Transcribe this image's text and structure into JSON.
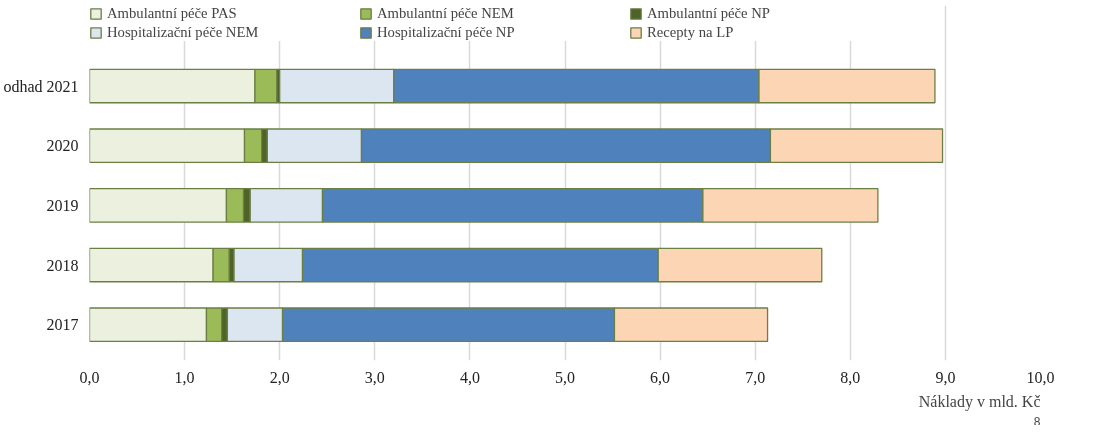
{
  "chart_data": {
    "type": "bar",
    "orientation": "horizontal",
    "stacked": true,
    "categories": [
      "odhad 2021",
      "2020",
      "2019",
      "2018",
      "2017"
    ],
    "series": [
      {
        "name": "Ambulantní péče PAS",
        "color": "#ebf1de",
        "values": [
          1.74,
          1.63,
          1.44,
          1.3,
          1.23
        ]
      },
      {
        "name": "Ambulantní péče NEM",
        "color": "#9bbb59",
        "values": [
          0.23,
          0.18,
          0.18,
          0.17,
          0.16
        ]
      },
      {
        "name": "Ambulantní péče NP",
        "color": "#4f6228",
        "values": [
          0.03,
          0.06,
          0.07,
          0.05,
          0.06
        ]
      },
      {
        "name": "Hospitalizační péče NEM",
        "color": "#dce6f1",
        "values": [
          1.2,
          0.99,
          0.76,
          0.72,
          0.58
        ]
      },
      {
        "name": "Hospitalizační péče NP",
        "color": "#4f81bd",
        "values": [
          3.84,
          4.3,
          4.0,
          3.74,
          3.49
        ]
      },
      {
        "name": "Recepty na LP",
        "color": "#fcd5b4",
        "values": [
          1.85,
          1.81,
          1.84,
          1.72,
          1.61
        ]
      }
    ],
    "xlabel": "Náklady v mld. Kč",
    "xlim": [
      0,
      10
    ],
    "xticks": [
      {
        "value": 0,
        "label": "0,0"
      },
      {
        "value": 1,
        "label": "1,0"
      },
      {
        "value": 2,
        "label": "2,0"
      },
      {
        "value": 3,
        "label": "3,0"
      },
      {
        "value": 4,
        "label": "4,0"
      },
      {
        "value": 5,
        "label": "5,0"
      },
      {
        "value": 6,
        "label": "6,0"
      },
      {
        "value": 7,
        "label": "7,0"
      },
      {
        "value": 8,
        "label": "8,0"
      },
      {
        "value": 9,
        "label": "9,0"
      },
      {
        "value": 10,
        "label": "10,0"
      }
    ],
    "grid": "x",
    "legend": "top",
    "annotations": [
      "8"
    ]
  }
}
